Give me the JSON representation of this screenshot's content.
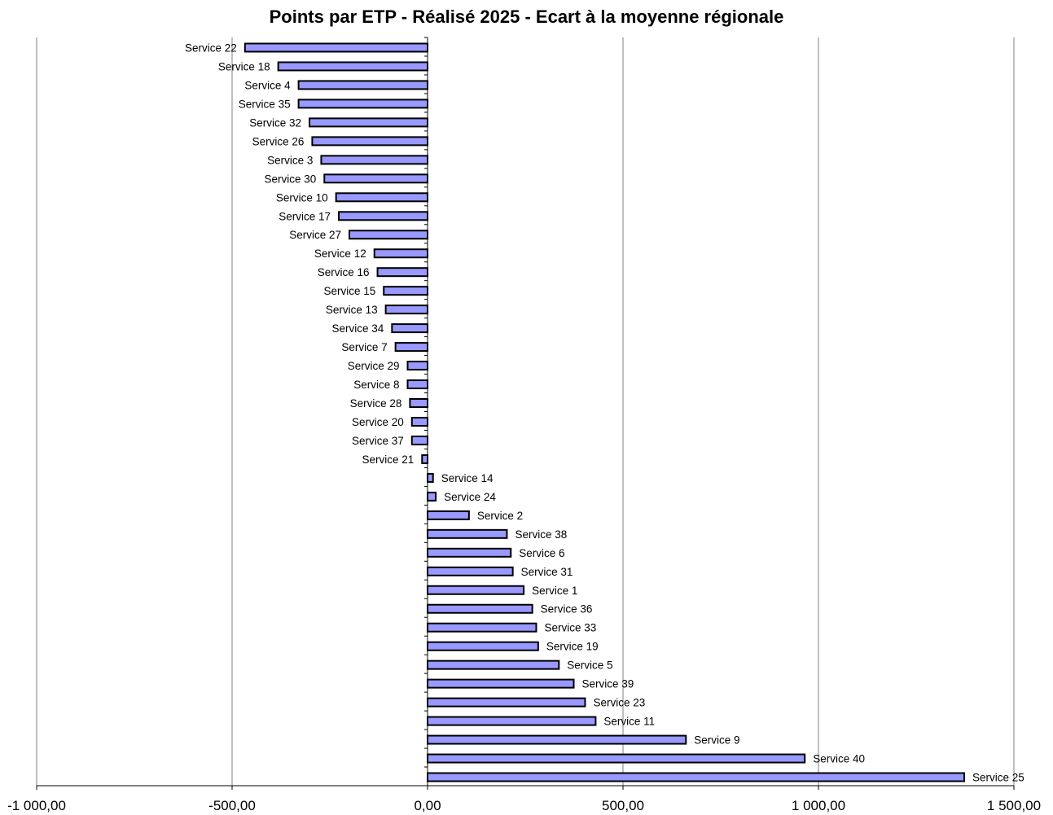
{
  "chart_data": {
    "type": "bar",
    "orientation": "horizontal",
    "title": "Points par ETP - Réalisé 2025 - Ecart à la moyenne régionale",
    "xlabel": "",
    "ylabel": "",
    "xlim": [
      -1000,
      1500
    ],
    "x_ticks": [
      -1000,
      -500,
      0,
      500,
      1000,
      1500
    ],
    "x_tick_labels": [
      "-1 000,00",
      "-500,00",
      "0,00",
      "500,00",
      "1 000,00",
      "1 500,00"
    ],
    "grid": "vertical major gridlines",
    "colors": {
      "bar_fill": "#9999ff",
      "bar_stroke": "#000000",
      "grid": "#808080",
      "axis": "#000000"
    },
    "categories": [
      "Service 22",
      "Service 18",
      "Service 4",
      "Service 35",
      "Service 32",
      "Service 26",
      "Service 3",
      "Service 30",
      "Service 10",
      "Service 17",
      "Service 27",
      "Service 12",
      "Service 16",
      "Service 15",
      "Service 13",
      "Service 34",
      "Service 7",
      "Service 29",
      "Service 8",
      "Service 28",
      "Service 20",
      "Service 37",
      "Service 21",
      "Service 14",
      "Service 24",
      "Service 2",
      "Service 38",
      "Service 6",
      "Service 31",
      "Service 1",
      "Service 36",
      "Service 33",
      "Service 19",
      "Service 5",
      "Service 39",
      "Service 23",
      "Service 11",
      "Service 9",
      "Service 40",
      "Service 25"
    ],
    "values": [
      -467,
      -382,
      -330,
      -330,
      -302,
      -295,
      -272,
      -264,
      -234,
      -227,
      -200,
      -136,
      -128,
      -112,
      -107,
      -91,
      -82,
      -51,
      -51,
      -45,
      -40,
      -40,
      -14,
      14,
      21,
      106,
      203,
      213,
      218,
      246,
      268,
      278,
      283,
      336,
      374,
      403,
      430,
      661,
      965,
      1373
    ]
  }
}
